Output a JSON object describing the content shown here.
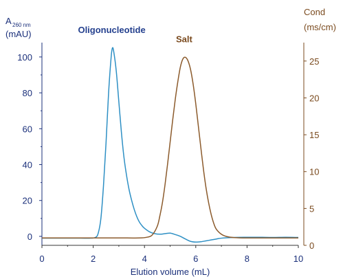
{
  "chart_data": {
    "type": "line",
    "title": "",
    "xlabel": "Elution volume (mL)",
    "xlim": [
      0,
      10
    ],
    "x_ticks": [
      0,
      2,
      4,
      6,
      8,
      10
    ],
    "left_axis": {
      "label_main": "A",
      "label_subscript": "260 nm",
      "label_unit": "(mAU)",
      "ylim": [
        -5,
        108
      ],
      "ticks": [
        0,
        20,
        40,
        60,
        80,
        100
      ],
      "color": "#1a2f7a"
    },
    "right_axis": {
      "label_main": "Cond",
      "label_unit": "(ms/cm)",
      "ylim": [
        0,
        27.5
      ],
      "ticks": [
        0,
        5,
        10,
        15,
        20,
        25
      ],
      "color": "#7a4a1e"
    },
    "series": [
      {
        "name": "Oligonucleotide",
        "axis": "left",
        "color": "#2d8fc4",
        "label_color": "#24408e",
        "x": [
          0,
          0.5,
          1.0,
          1.5,
          1.9,
          2.1,
          2.2,
          2.3,
          2.4,
          2.5,
          2.6,
          2.7,
          2.75,
          2.8,
          2.9,
          3.0,
          3.1,
          3.2,
          3.3,
          3.4,
          3.5,
          3.6,
          3.7,
          3.8,
          3.9,
          4.0,
          4.2,
          4.4,
          4.6,
          4.8,
          5.0,
          5.2,
          5.4,
          5.6,
          5.8,
          6.0,
          6.2,
          6.4,
          6.6,
          6.8,
          7.0,
          7.5,
          8.0,
          8.5,
          9.0,
          9.5,
          10.0
        ],
        "y": [
          -1,
          -1,
          -1,
          -1,
          -1,
          -0.5,
          2,
          10,
          28,
          52,
          80,
          100,
          105,
          103,
          92,
          75,
          58,
          44,
          34,
          26,
          20,
          15,
          11,
          8,
          6,
          4.5,
          2.5,
          1.5,
          1.2,
          1.5,
          1.8,
          1,
          0,
          -1.5,
          -2.8,
          -3.2,
          -3,
          -2.5,
          -2,
          -1.5,
          -1,
          -0.6,
          -0.5,
          -0.5,
          -0.6,
          -0.5,
          -0.6
        ]
      },
      {
        "name": "Salt",
        "axis": "right",
        "color": "#8b5a2b",
        "label_color": "#7a4a1e",
        "x": [
          0,
          1.0,
          2.0,
          3.0,
          3.8,
          4.1,
          4.3,
          4.5,
          4.6,
          4.7,
          4.8,
          4.9,
          5.0,
          5.1,
          5.2,
          5.3,
          5.4,
          5.5,
          5.6,
          5.7,
          5.8,
          5.9,
          6.0,
          6.1,
          6.2,
          6.3,
          6.4,
          6.5,
          6.6,
          6.7,
          6.8,
          7.0,
          7.2,
          7.5,
          8.0,
          9.0,
          10.0
        ],
        "y": [
          1,
          1,
          1,
          1,
          1,
          1.1,
          1.4,
          2.6,
          4.0,
          5.8,
          8.2,
          11,
          14,
          17,
          19.8,
          22.2,
          24.2,
          25.3,
          25.5,
          25.0,
          23.8,
          21.8,
          19.2,
          16.2,
          13.2,
          10.3,
          7.8,
          5.8,
          4.2,
          3.0,
          2.2,
          1.5,
          1.2,
          1.05,
          1,
          1,
          1
        ]
      }
    ]
  }
}
